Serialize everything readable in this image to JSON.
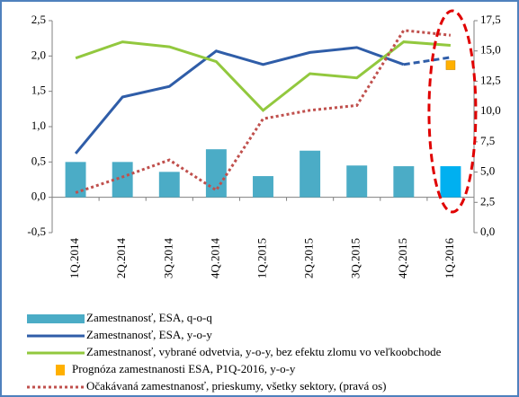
{
  "chart_data": {
    "type": "bar-line",
    "categories": [
      "1Q.2014",
      "2Q.2014",
      "3Q.2014",
      "4Q.2014",
      "1Q.2015",
      "2Q.2015",
      "3Q.2015",
      "4Q.2015",
      "1Q.2016"
    ],
    "series": [
      {
        "name": "Zamestnanosť, ESA, q-o-q",
        "kind": "bar",
        "color": "#4bacc6",
        "bar_colors": [
          "#4bacc6",
          "#4bacc6",
          "#4bacc6",
          "#4bacc6",
          "#4bacc6",
          "#4bacc6",
          "#4bacc6",
          "#4bacc6",
          "#00b0f0"
        ],
        "values": [
          0.5,
          0.5,
          0.36,
          0.68,
          0.3,
          0.66,
          0.45,
          0.44,
          0.44
        ]
      },
      {
        "name": "Zamestnanosť, ESA, y-o-y",
        "kind": "line",
        "color": "#2f5da8",
        "values": [
          0.62,
          1.42,
          1.57,
          2.07,
          1.88,
          2.05,
          2.12,
          1.88,
          1.98
        ]
      },
      {
        "name": "Zamestnanosť, vybrané odvetvia, y-o-y, bez efektu zlomu vo veľkoobchode",
        "kind": "line",
        "color": "#92c83e",
        "values": [
          1.97,
          2.2,
          2.13,
          1.92,
          1.23,
          1.75,
          1.69,
          2.2,
          2.15
        ]
      },
      {
        "name": "Prognóza zamestnanosti ESA, P1Q-2016, y-o-y",
        "kind": "marker",
        "color": "#ffb000",
        "values": [
          null,
          null,
          null,
          null,
          null,
          null,
          null,
          null,
          1.87
        ]
      },
      {
        "name": "Očakávaná zamestnanosť, prieskumy, všetky sektory, (pravá os)",
        "kind": "dotted",
        "color": "#c0504d",
        "axis": "y2",
        "values": [
          3.3,
          4.6,
          6.0,
          3.5,
          9.4,
          10.1,
          10.5,
          16.7,
          16.3
        ]
      }
    ],
    "ylim": [
      -0.5,
      2.5
    ],
    "yticks": [
      {
        "value": -0.5,
        "label": "-0,5"
      },
      {
        "value": 0,
        "label": "0,0"
      },
      {
        "value": 0.5,
        "label": "0,5"
      },
      {
        "value": 1,
        "label": "1,0"
      },
      {
        "value": 1.5,
        "label": "1,5"
      },
      {
        "value": 2,
        "label": "2,0"
      },
      {
        "value": 2.5,
        "label": "2,5"
      }
    ],
    "y2lim": [
      0,
      17.5
    ],
    "y2ticks": [
      {
        "value": 0,
        "label": "0,0"
      },
      {
        "value": 2.5,
        "label": "2,5"
      },
      {
        "value": 5,
        "label": "5,0"
      },
      {
        "value": 7.5,
        "label": "7,5"
      },
      {
        "value": 10,
        "label": "10,0"
      },
      {
        "value": 12.5,
        "label": "12,5"
      },
      {
        "value": 15,
        "label": "15,0"
      },
      {
        "value": 17.5,
        "label": "17,5"
      }
    ],
    "grid": false
  }
}
